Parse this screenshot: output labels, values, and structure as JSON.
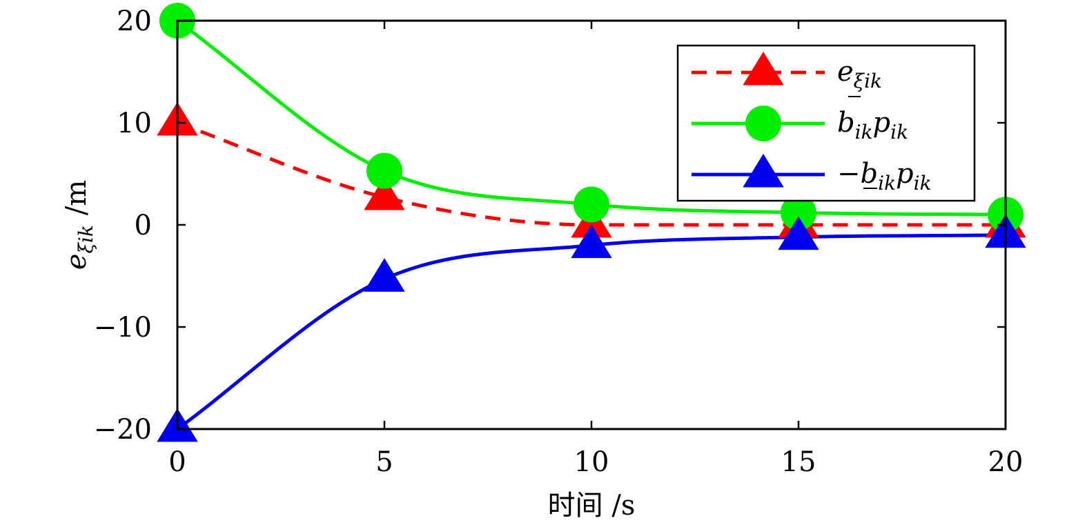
{
  "chart_data": {
    "type": "line",
    "x": [
      0,
      5,
      10,
      15,
      20
    ],
    "xlim": [
      0,
      20
    ],
    "ylim": [
      -20,
      20
    ],
    "xticks": [
      "0",
      "5",
      "10",
      "15",
      "20"
    ],
    "yticks": [
      "20",
      "10",
      "0",
      "−10",
      "−20"
    ],
    "xlabel": "时间 /s",
    "ylabel": "/m",
    "grid": false,
    "legend_position": "top-right",
    "series": [
      {
        "name": "e_ξik",
        "color": "#ff0000",
        "line_style": "dashed",
        "marker": "triangle",
        "values": [
          10,
          2.7,
          0,
          0,
          0
        ]
      },
      {
        "name": "b̄_ik p_ik",
        "color": "#00ee00",
        "line_style": "solid",
        "marker": "circle",
        "values": [
          20,
          5.3,
          2,
          1.2,
          1
        ]
      },
      {
        "name": "−b_ik p_ik",
        "color": "#0000ee",
        "line_style": "solid",
        "marker": "triangle",
        "values": [
          -20,
          -5.3,
          -2,
          -1.2,
          -1
        ]
      }
    ]
  }
}
